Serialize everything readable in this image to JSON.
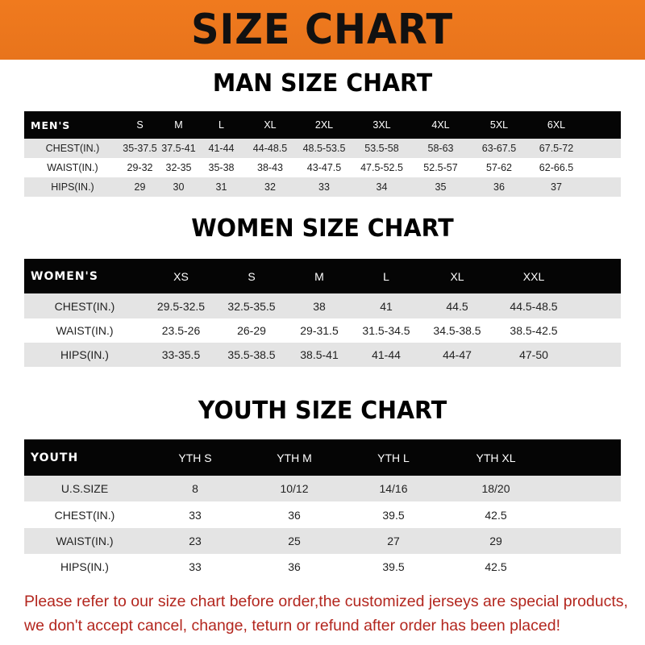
{
  "banner_title": "SIZE CHART",
  "men": {
    "title": "MAN SIZE CHART",
    "headers": [
      "MEN'S",
      "S",
      "M",
      "L",
      "XL",
      "2XL",
      "3XL",
      "4XL",
      "5XL",
      "6XL"
    ],
    "rows": [
      [
        "CHEST(IN.)",
        "35-37.5",
        "37.5-41",
        "41-44",
        "44-48.5",
        "48.5-53.5",
        "53.5-58",
        "58-63",
        "63-67.5",
        "67.5-72"
      ],
      [
        "WAIST(IN.)",
        "29-32",
        "32-35",
        "35-38",
        "38-43",
        "43-47.5",
        "47.5-52.5",
        "52.5-57",
        "57-62",
        "62-66.5"
      ],
      [
        "HIPS(IN.)",
        "29",
        "30",
        "31",
        "32",
        "33",
        "34",
        "35",
        "36",
        "37"
      ]
    ]
  },
  "women": {
    "title": "WOMEN SIZE CHART",
    "headers": [
      "WOMEN'S",
      "XS",
      "S",
      "M",
      "L",
      "XL",
      "XXL"
    ],
    "rows": [
      [
        "CHEST(IN.)",
        "29.5-32.5",
        "32.5-35.5",
        "38",
        "41",
        "44.5",
        "44.5-48.5"
      ],
      [
        "WAIST(IN.)",
        "23.5-26",
        "26-29",
        "29-31.5",
        "31.5-34.5",
        "34.5-38.5",
        "38.5-42.5"
      ],
      [
        "HIPS(IN.)",
        "33-35.5",
        "35.5-38.5",
        "38.5-41",
        "41-44",
        "44-47",
        "47-50"
      ]
    ]
  },
  "youth": {
    "title": "YOUTH SIZE CHART",
    "headers": [
      "YOUTH",
      "YTH S",
      "YTH M",
      "YTH L",
      "YTH XL"
    ],
    "rows": [
      [
        "U.S.SIZE",
        "8",
        "10/12",
        "14/16",
        "18/20"
      ],
      [
        "CHEST(IN.)",
        "33",
        "36",
        "39.5",
        "42.5"
      ],
      [
        "WAIST(IN.)",
        "23",
        "25",
        "27",
        "29"
      ],
      [
        "HIPS(IN.)",
        "33",
        "36",
        "39.5",
        "42.5"
      ]
    ]
  },
  "notice": {
    "line1": "Please refer to our size chart before order,the customized jerseys are special products,",
    "line2": "we don't accept cancel, change, teturn or refund after order has been placed!"
  },
  "colors": {
    "banner": "#f07a1e",
    "header_row": "#050505",
    "shaded_row": "#e4e4e4",
    "notice": "#b3261e"
  }
}
